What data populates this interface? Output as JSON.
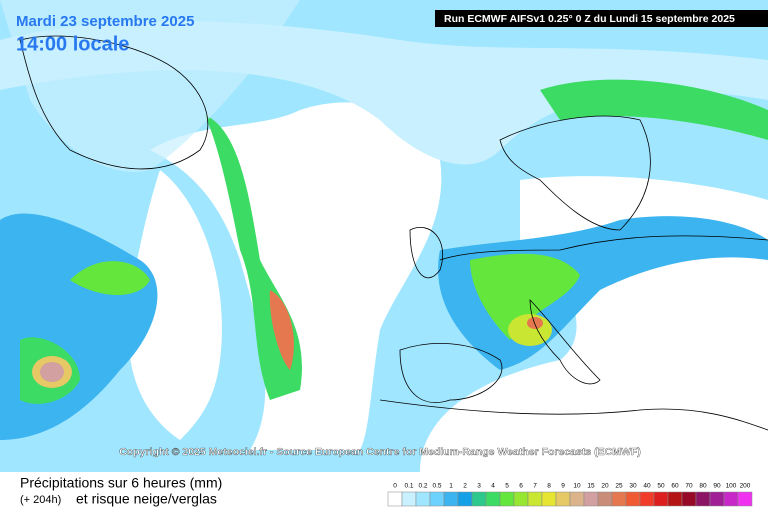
{
  "header": {
    "date": "Mardi 23 septembre 2025",
    "time": "14:00 locale",
    "run": "Run ECMWF AIFSv1 0.25° 0 Z du Lundi 15 septembre 2025"
  },
  "copyright": "Copyright © 2025 Meteociel.fr - Source European Centre for Medium-Range Weather Forecasts (ECMWF)",
  "legend": {
    "title": "Précipitations sur 6 heures (mm)",
    "lead": "(+ 204h)",
    "subtitle": "et risque neige/verglas",
    "labels": [
      "0",
      "0.1",
      "0.2",
      "0.5",
      "1",
      "2",
      "3",
      "4",
      "5",
      "6",
      "7",
      "8",
      "9",
      "10",
      "15",
      "20",
      "25",
      "30",
      "40",
      "50",
      "60",
      "70",
      "80",
      "90",
      "100",
      "200"
    ],
    "colors": [
      "#ffffff",
      "#c8f0ff",
      "#a0e6ff",
      "#6ed2ff",
      "#3cb4f0",
      "#14a0e6",
      "#2dc88c",
      "#3cdc64",
      "#64e63c",
      "#96e632",
      "#c8e632",
      "#e6e632",
      "#e6c864",
      "#dcb48c",
      "#d2a0a0",
      "#c88c78",
      "#e67850",
      "#f05a32",
      "#f03c28",
      "#dc1e1e",
      "#b41414",
      "#960a28",
      "#8c1464",
      "#a01e96",
      "#c828c8",
      "#f032f0"
    ]
  }
}
